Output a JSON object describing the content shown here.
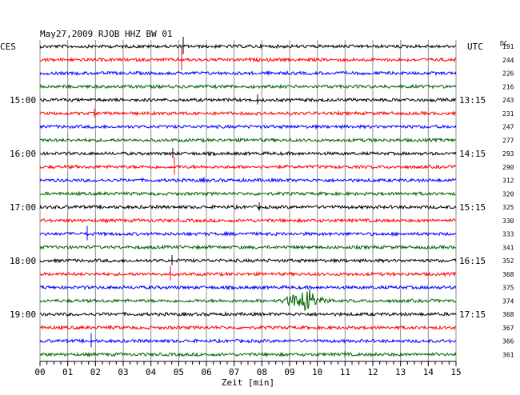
{
  "chart_data": {
    "type": "line",
    "title": "May27,2009   RJOB HHZ BW 01",
    "left_label": "CES",
    "right_label": "UTC",
    "right_column_label": "DC",
    "xlabel": "Zeit [min]",
    "x_ticks": [
      "00",
      "01",
      "02",
      "03",
      "04",
      "05",
      "06",
      "07",
      "08",
      "09",
      "10",
      "11",
      "12",
      "13",
      "14",
      "15"
    ],
    "xlim": [
      0,
      15
    ],
    "grid": true,
    "trace_colors": [
      "#000000",
      "#ff0000",
      "#0000ff",
      "#006400"
    ],
    "left_time_labels": [
      {
        "row": 4,
        "text": "15:00"
      },
      {
        "row": 8,
        "text": "16:00"
      },
      {
        "row": 12,
        "text": "17:00"
      },
      {
        "row": 16,
        "text": "18:00"
      },
      {
        "row": 20,
        "text": "19:00"
      }
    ],
    "right_time_labels": [
      {
        "row": 4,
        "text": "13:15"
      },
      {
        "row": 8,
        "text": "14:15"
      },
      {
        "row": 12,
        "text": "15:15"
      },
      {
        "row": 16,
        "text": "16:15"
      },
      {
        "row": 20,
        "text": "17:15"
      }
    ],
    "dc_values": [
      "191",
      "244",
      "226",
      "216",
      "243",
      "231",
      "247",
      "277",
      "293",
      "290",
      "312",
      "320",
      "325",
      "330",
      "333",
      "341",
      "352",
      "368",
      "375",
      "374",
      "368",
      "367",
      "366",
      "361"
    ],
    "spikes": [
      {
        "row": 0,
        "minute": 5.15,
        "amp": 12
      },
      {
        "row": 1,
        "minute": 5.1,
        "amp": 16
      },
      {
        "row": 4,
        "minute": 7.85,
        "amp": 7
      },
      {
        "row": 5,
        "minute": 1.95,
        "amp": 6
      },
      {
        "row": 8,
        "minute": 4.8,
        "amp": 7
      },
      {
        "row": 9,
        "minute": 4.85,
        "amp": 12
      },
      {
        "row": 10,
        "minute": 5.9,
        "amp": 4
      },
      {
        "row": 12,
        "minute": 7.9,
        "amp": 6
      },
      {
        "row": 14,
        "minute": 1.7,
        "amp": 10
      },
      {
        "row": 16,
        "minute": 4.75,
        "amp": 7
      },
      {
        "row": 17,
        "minute": 4.7,
        "amp": 10
      },
      {
        "row": 21,
        "minute": 2.55,
        "amp": 3
      },
      {
        "row": 22,
        "minute": 1.85,
        "amp": 10
      },
      {
        "row": 23,
        "minute": 11.0,
        "amp": 4
      }
    ],
    "event": {
      "row": 19,
      "start_minute": 8.4,
      "peak_minute": 9.65,
      "end_minute": 11.0,
      "amp": 18
    }
  }
}
